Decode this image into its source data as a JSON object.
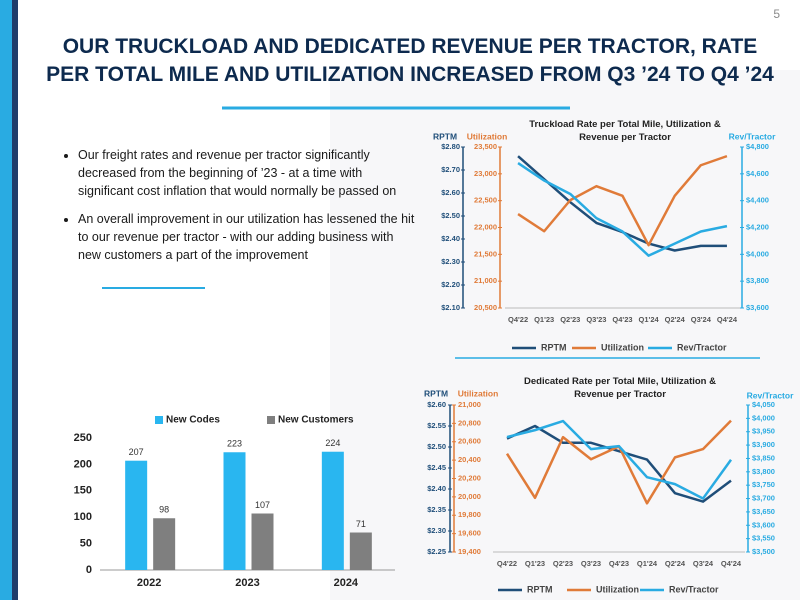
{
  "page_number": "5",
  "title": "OUR TRUCKLOAD AND DEDICATED REVENUE PER TRACTOR, RATE PER TOTAL MILE AND UTILIZATION INCREASED FROM Q3 ’24 TO Q4 ’24",
  "bullets": [
    "Our freight rates and revenue per tractor significantly decreased from the beginning of ’23 - at a time with significant cost inflation that would normally be passed on",
    "An overall improvement in our utilization has lessened the hit to our revenue per tractor - with our adding business with new customers a part of the improvement"
  ],
  "chart_data": [
    {
      "type": "line",
      "title": "Truckload Rate per Total Mile, Utilization & Revenue per Tractor",
      "ylabel": "RPTM",
      "y3label": "Utilization",
      "y2label": "Rev/Tractor",
      "categories": [
        "Q4'22",
        "Q1'23",
        "Q2'23",
        "Q3'23",
        "Q4'23",
        "Q1'24",
        "Q2'24",
        "Q3'24",
        "Q4'24"
      ],
      "series": [
        {
          "name": "RPTM",
          "color": "#1f4e79",
          "values": [
            2.76,
            2.66,
            2.56,
            2.47,
            2.43,
            2.38,
            2.35,
            2.37,
            2.37
          ]
        },
        {
          "name": "Utilization",
          "color": "#e07b39",
          "axis": "y3",
          "values": [
            22250,
            21930,
            22510,
            22770,
            22590,
            21670,
            22590,
            23160,
            23330
          ]
        },
        {
          "name": "Rev/Tractor",
          "color": "#29abe2",
          "axis": "y2",
          "values": [
            4680,
            4550,
            4450,
            4270,
            4170,
            3990,
            4080,
            4170,
            4210
          ]
        }
      ],
      "ylim": [
        2.1,
        2.8
      ],
      "yticks": [
        {
          "value": 2.1,
          "label": "$2.10"
        },
        {
          "value": 2.2,
          "label": "$2.20"
        },
        {
          "value": 2.3,
          "label": "$2.30"
        },
        {
          "value": 2.4,
          "label": "$2.40"
        },
        {
          "value": 2.5,
          "label": "$2.50"
        },
        {
          "value": 2.6,
          "label": "$2.60"
        },
        {
          "value": 2.7,
          "label": "$2.70"
        },
        {
          "value": 2.8,
          "label": "$2.80"
        }
      ],
      "y3lim": [
        20500,
        23500
      ],
      "y3ticks": [
        {
          "value": 20500,
          "label": "20,500"
        },
        {
          "value": 21000,
          "label": "21,000"
        },
        {
          "value": 21500,
          "label": "21,500"
        },
        {
          "value": 22000,
          "label": "22,000"
        },
        {
          "value": 22500,
          "label": "22,500"
        },
        {
          "value": 23000,
          "label": "23,000"
        },
        {
          "value": 23500,
          "label": "23,500"
        }
      ],
      "y2lim": [
        3600,
        4800
      ],
      "y2ticks": [
        {
          "value": 3600,
          "label": "$3,600"
        },
        {
          "value": 3800,
          "label": "$3,800"
        },
        {
          "value": 4000,
          "label": "$4,000"
        },
        {
          "value": 4200,
          "label": "$4,200"
        },
        {
          "value": 4400,
          "label": "$4,400"
        },
        {
          "value": 4600,
          "label": "$4,600"
        },
        {
          "value": 4800,
          "label": "$4,800"
        }
      ]
    },
    {
      "type": "line",
      "title": "Dedicated Rate per Total Mile, Utilization & Revenue per Tractor",
      "ylabel": "RPTM",
      "y3label": "Utilization",
      "y2label": "Rev/Tractor",
      "categories": [
        "Q4'22",
        "Q1'23",
        "Q2'23",
        "Q3'23",
        "Q4'23",
        "Q1'24",
        "Q2'24",
        "Q3'24",
        "Q4'24"
      ],
      "series": [
        {
          "name": "RPTM",
          "color": "#1f4e79",
          "values": [
            2.52,
            2.55,
            2.51,
            2.51,
            2.49,
            2.47,
            2.39,
            2.37,
            2.42
          ]
        },
        {
          "name": "Utilization",
          "color": "#e07b39",
          "axis": "y3",
          "values": [
            20470,
            19990,
            20650,
            20410,
            20550,
            19930,
            20430,
            20520,
            20830
          ]
        },
        {
          "name": "Rev/Tractor",
          "color": "#29abe2",
          "axis": "y2",
          "values": [
            3930,
            3956,
            3990,
            3885,
            3896,
            3780,
            3754,
            3700,
            3845
          ]
        }
      ],
      "ylim": [
        2.25,
        2.6
      ],
      "yticks": [
        {
          "value": 2.25,
          "label": "$2.25"
        },
        {
          "value": 2.3,
          "label": "$2.30"
        },
        {
          "value": 2.35,
          "label": "$2.35"
        },
        {
          "value": 2.4,
          "label": "$2.40"
        },
        {
          "value": 2.45,
          "label": "$2.45"
        },
        {
          "value": 2.5,
          "label": "$2.50"
        },
        {
          "value": 2.55,
          "label": "$2.55"
        },
        {
          "value": 2.6,
          "label": "$2.60"
        }
      ],
      "y3lim": [
        19400,
        21000
      ],
      "y3ticks": [
        {
          "value": 19400,
          "label": "19,400"
        },
        {
          "value": 19600,
          "label": "19,600"
        },
        {
          "value": 19800,
          "label": "19,800"
        },
        {
          "value": 20000,
          "label": "20,000"
        },
        {
          "value": 20200,
          "label": "20,200"
        },
        {
          "value": 20400,
          "label": "20,400"
        },
        {
          "value": 20600,
          "label": "20,600"
        },
        {
          "value": 20800,
          "label": "20,800"
        },
        {
          "value": 21000,
          "label": "21,000"
        }
      ],
      "y2lim": [
        3500,
        4050
      ],
      "y2ticks": [
        {
          "value": 3500,
          "label": "$3,500"
        },
        {
          "value": 3550,
          "label": "$3,550"
        },
        {
          "value": 3600,
          "label": "$3,600"
        },
        {
          "value": 3650,
          "label": "$3,650"
        },
        {
          "value": 3700,
          "label": "$3,700"
        },
        {
          "value": 3750,
          "label": "$3,750"
        },
        {
          "value": 3800,
          "label": "$3,800"
        },
        {
          "value": 3850,
          "label": "$3,850"
        },
        {
          "value": 3900,
          "label": "$3,900"
        },
        {
          "value": 3950,
          "label": "$3,950"
        },
        {
          "value": 4000,
          "label": "$4,000"
        },
        {
          "value": 4050,
          "label": "$4,050"
        }
      ]
    },
    {
      "type": "bar",
      "categories": [
        "2022",
        "2023",
        "2024"
      ],
      "series": [
        {
          "name": "New Codes",
          "color": "#29b6f0",
          "values": [
            207,
            223,
            224
          ]
        },
        {
          "name": "New Customers",
          "color": "#7f7f7f",
          "values": [
            98,
            107,
            71
          ]
        }
      ],
      "ylim": [
        0,
        250
      ],
      "yticks": [
        0,
        50,
        100,
        150,
        200,
        250
      ],
      "grid": false
    }
  ]
}
